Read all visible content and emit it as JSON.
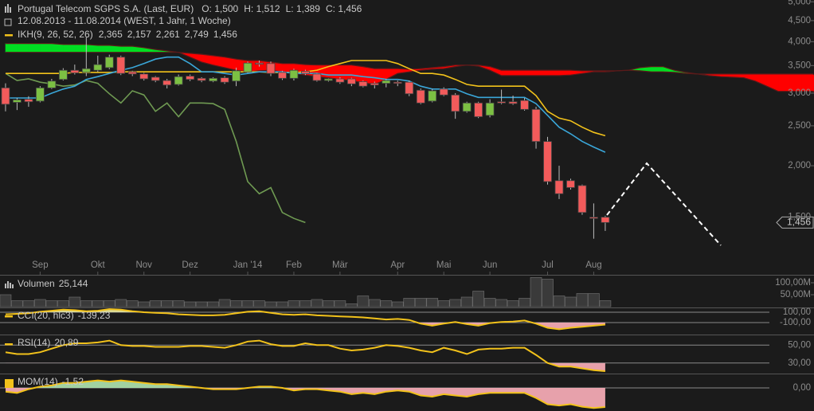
{
  "chart_data": [
    {
      "type": "candlestick",
      "title": "Portugal Telecom SGPS S.A. (Last, EUR)",
      "quote": [
        {
          "value": 1.5,
          "label": "O: 1,500"
        },
        {
          "value": 1.512,
          "label": "H: 1,512"
        },
        {
          "value": 1.389,
          "label": "L: 1,389"
        },
        {
          "value": 1.456,
          "label": "C: 1,456"
        }
      ],
      "subtitle": "12.08.2013 - 11.08.2014 (WEST, 1 Jahr, 1 Woche)",
      "open": [
        3.09,
        2.85,
        2.9,
        2.87,
        3.09,
        3.24,
        3.41,
        3.37,
        3.41,
        3.46,
        3.67,
        3.38,
        3.34,
        3.28,
        3.22,
        3.15,
        3.3,
        3.26,
        3.21,
        3.27,
        3.21,
        3.38,
        3.55,
        3.54,
        3.37,
        3.26,
        3.39,
        3.34,
        3.22,
        3.25,
        3.25,
        3.2,
        3.17,
        3.17,
        3.19,
        3.19,
        3.05,
        2.87,
        3.07,
        2.97,
        2.71,
        2.84,
        2.65,
        2.86,
        2.86,
        2.88,
        2.74,
        2.29,
        1.84,
        1.84,
        1.79,
        1.5,
        1.5
      ],
      "high": [
        3.17,
        2.92,
        2.95,
        3.12,
        3.25,
        3.45,
        3.52,
        4.1,
        3.7,
        3.72,
        3.7,
        3.4,
        3.36,
        3.3,
        3.25,
        3.33,
        3.33,
        3.28,
        3.28,
        3.3,
        3.46,
        3.58,
        3.6,
        3.58,
        3.4,
        3.44,
        3.42,
        3.36,
        3.26,
        3.28,
        3.27,
        3.22,
        3.2,
        3.25,
        3.22,
        3.22,
        3.08,
        3.07,
        3.1,
        3.0,
        2.86,
        2.86,
        2.9,
        3.06,
        2.96,
        2.92,
        2.78,
        2.35,
        2.0,
        1.86,
        1.8,
        1.62,
        1.512
      ],
      "low": [
        2.71,
        2.73,
        2.78,
        2.85,
        3.07,
        3.22,
        3.33,
        3.3,
        3.38,
        3.43,
        3.32,
        3.3,
        3.22,
        3.19,
        3.08,
        3.13,
        3.21,
        3.19,
        3.19,
        3.16,
        3.12,
        3.36,
        3.48,
        3.3,
        3.23,
        3.22,
        3.32,
        3.2,
        3.2,
        3.16,
        3.12,
        3.1,
        3.08,
        3.1,
        3.12,
        2.95,
        2.82,
        2.85,
        2.95,
        2.6,
        2.69,
        2.61,
        2.62,
        2.82,
        2.81,
        2.72,
        2.2,
        1.8,
        1.66,
        1.75,
        1.52,
        1.33,
        1.389
      ],
      "close": [
        2.82,
        2.89,
        2.86,
        3.09,
        3.21,
        3.41,
        3.36,
        3.44,
        3.52,
        3.67,
        3.35,
        3.34,
        3.25,
        3.22,
        3.14,
        3.29,
        3.24,
        3.22,
        3.26,
        3.19,
        3.4,
        3.55,
        3.53,
        3.35,
        3.26,
        3.41,
        3.35,
        3.22,
        3.25,
        3.19,
        3.16,
        3.12,
        3.14,
        3.22,
        3.17,
        2.99,
        2.84,
        3.04,
        2.97,
        2.71,
        2.84,
        2.63,
        2.84,
        2.84,
        2.83,
        2.74,
        2.29,
        1.83,
        1.71,
        1.77,
        1.54,
        1.49,
        1.456
      ],
      "up_color": "#7cc043",
      "down_color": "#f25b5b",
      "xlim": [
        -0.48,
        70.1
      ],
      "xticks": [
        {
          "value": -1.5,
          "label": "Aug"
        },
        {
          "value": 3,
          "label": "Sep"
        },
        {
          "value": 8,
          "label": "Okt"
        },
        {
          "value": 12,
          "label": "Nov"
        },
        {
          "value": 16,
          "label": "Dez"
        },
        {
          "value": 21,
          "label": "Jan '14"
        },
        {
          "value": 25,
          "label": "Feb"
        },
        {
          "value": 29,
          "label": "Mär"
        },
        {
          "value": 34,
          "label": "Apr"
        },
        {
          "value": 38,
          "label": "Mai"
        },
        {
          "value": 42,
          "label": "Jun"
        },
        {
          "value": 47,
          "label": "Jul"
        },
        {
          "value": 51,
          "label": "Aug"
        }
      ],
      "ylim": [
        1.087,
        5.05
      ],
      "yticks": [
        {
          "value": 1.5,
          "label": "1,500"
        },
        {
          "value": 2,
          "label": "2,000"
        },
        {
          "value": 2.5,
          "label": "2,500"
        },
        {
          "value": 3,
          "label": "3,000"
        },
        {
          "value": 3.5,
          "label": "3,500"
        },
        {
          "value": 4,
          "label": "4,000"
        },
        {
          "value": 4.5,
          "label": "4,500"
        },
        {
          "value": 5,
          "label": "5,000"
        }
      ],
      "log_scale": true,
      "last_price": {
        "value": 1.456,
        "label": "1,456"
      },
      "ichimoku": {
        "label": "IKH(9, 26, 52, 26)",
        "color": "#f2c21b",
        "cloud_colors": [
          "#00dd22",
          "#ff0000"
        ],
        "series": [
          {
            "color": "#f2c21b",
            "label": "2,365",
            "values": [
              3.35,
              3.35,
              3.35,
              3.35,
              3.35,
              3.35,
              3.37,
              3.37,
              3.37,
              3.37,
              3.38,
              3.38,
              3.38,
              3.38,
              3.38,
              3.38,
              3.38,
              3.38,
              3.38,
              3.38,
              3.38,
              3.38,
              3.38,
              3.37,
              3.37,
              3.37,
              3.38,
              3.41,
              3.48,
              3.54,
              3.6,
              3.6,
              3.6,
              3.6,
              3.54,
              3.44,
              3.35,
              3.35,
              3.32,
              3.24,
              3.15,
              3.12,
              3.12,
              3.12,
              3.12,
              3.12,
              2.96,
              2.71,
              2.61,
              2.57,
              2.48,
              2.41,
              2.365
            ]
          },
          {
            "color": "#3aa6d8",
            "label": "2,157",
            "values": [
              2.92,
              2.92,
              2.92,
              2.92,
              3.0,
              3.07,
              3.12,
              3.24,
              3.29,
              3.35,
              3.41,
              3.46,
              3.54,
              3.63,
              3.67,
              3.67,
              3.54,
              3.38,
              3.38,
              3.35,
              3.32,
              3.35,
              3.38,
              3.38,
              3.38,
              3.35,
              3.35,
              3.35,
              3.32,
              3.32,
              3.32,
              3.29,
              3.27,
              3.24,
              3.24,
              3.21,
              3.12,
              3.07,
              3.07,
              3.07,
              2.99,
              2.93,
              2.93,
              2.93,
              2.93,
              2.93,
              2.83,
              2.65,
              2.48,
              2.39,
              2.29,
              2.22,
              2.157
            ]
          },
          {
            "color": "#8d84c6",
            "label": "2,261",
            "values": [
              3.96,
              3.96,
              3.96,
              3.96,
              3.96,
              3.94,
              3.94,
              3.94,
              3.92,
              3.92,
              3.9,
              3.9,
              3.87,
              3.83,
              3.8,
              3.77,
              3.67,
              3.57,
              3.51,
              3.46,
              3.41,
              3.38,
              3.4,
              3.41,
              3.38,
              3.35,
              3.32,
              3.29,
              3.27,
              3.24,
              3.22,
              3.18,
              3.15,
              3.24,
              3.35,
              3.38,
              3.41,
              3.43,
              3.44,
              3.48,
              3.51,
              3.49,
              3.41,
              3.31,
              3.31,
              3.31,
              3.31,
              3.31,
              3.31,
              3.32,
              3.35,
              3.38,
              3.38,
              3.4,
              3.41,
              3.46,
              3.48,
              3.48,
              3.41,
              3.37,
              3.34,
              3.31,
              3.29,
              3.28,
              3.27,
              3.21,
              3.12,
              3.03,
              3.03,
              3.03,
              3.03,
              2.95,
              2.85,
              2.75,
              2.6,
              2.5,
              2.4,
              2.3,
              2.261
            ]
          },
          {
            "color": "#b25aa3",
            "label": "2,749",
            "values": [
              3.77,
              3.77,
              3.77,
              3.77,
              3.77,
              3.77,
              3.77,
              3.77,
              3.77,
              3.77,
              3.77,
              3.77,
              3.77,
              3.77,
              3.77,
              3.77,
              3.75,
              3.73,
              3.7,
              3.67,
              3.63,
              3.6,
              3.6,
              3.57,
              3.54,
              3.54,
              3.52,
              3.51,
              3.51,
              3.51,
              3.51,
              3.48,
              3.44,
              3.44,
              3.44,
              3.43,
              3.44,
              3.46,
              3.48,
              3.51,
              3.51,
              3.51,
              3.48,
              3.41,
              3.41,
              3.41,
              3.41,
              3.41,
              3.41,
              3.41,
              3.4,
              3.4,
              3.4,
              3.4,
              3.41,
              3.4,
              3.38,
              3.38,
              3.37,
              3.35,
              3.34,
              3.34,
              3.34,
              3.34,
              3.34,
              3.34,
              3.34,
              3.34,
              3.34,
              3.34,
              3.34,
              3.2,
              3.1,
              3.0,
              2.9,
              2.85,
              2.8,
              2.77,
              2.749
            ]
          },
          {
            "color": "#6f9a52",
            "label": "1,456",
            "values": [
              3.35,
              3.22,
              3.25,
              3.19,
              3.16,
              3.12,
              3.14,
              3.22,
              3.17,
              2.99,
              2.84,
              3.04,
              2.97,
              2.71,
              2.84,
              2.63,
              2.84,
              2.84,
              2.83,
              2.74,
              2.29,
              1.83,
              1.71,
              1.77,
              1.54,
              1.49,
              1.456
            ]
          }
        ]
      }
    },
    {
      "type": "bar",
      "series": [
        {
          "name": "Volumen",
          "color": "#3a3a3a",
          "last_label": "25,144",
          "values": [
            50,
            25,
            25,
            30,
            25,
            25,
            40,
            25,
            25,
            25,
            30,
            25,
            20,
            25,
            25,
            25,
            20,
            20,
            20,
            30,
            25,
            25,
            25,
            20,
            20,
            25,
            25,
            30,
            25,
            25,
            12,
            45,
            30,
            25,
            20,
            35,
            35,
            35,
            25,
            30,
            40,
            65,
            35,
            30,
            25,
            35,
            122,
            115,
            45,
            40,
            55,
            55,
            25.144
          ]
        }
      ],
      "ylim": [
        0,
        130
      ],
      "yticks": [
        {
          "value": 50,
          "label": "50,00M"
        },
        {
          "value": 100,
          "label": "100,00M"
        }
      ]
    },
    {
      "type": "line",
      "series": [
        {
          "name": "CCI(20, hlc3)",
          "color": "#f2c21b",
          "last_label": "-139,23",
          "values": [
            60,
            70,
            80,
            110,
            130,
            150,
            140,
            120,
            130,
            160,
            150,
            120,
            100,
            90,
            80,
            60,
            50,
            40,
            40,
            50,
            80,
            110,
            120,
            90,
            60,
            50,
            60,
            40,
            30,
            20,
            10,
            0,
            -20,
            -40,
            -30,
            -50,
            -120,
            -160,
            -120,
            -90,
            -130,
            -160,
            -110,
            -90,
            -80,
            -60,
            -120,
            -200,
            -230,
            -200,
            -180,
            -160,
            -139.23
          ]
        }
      ],
      "ylim": [
        -331,
        177
      ],
      "yticks": [
        {
          "value": -100,
          "label": "-100,00"
        },
        {
          "value": 100,
          "label": "100,00"
        }
      ],
      "fill_above": {
        "value": 100,
        "color": "#e6e49a"
      },
      "fill_below": {
        "value": -100,
        "color": "#f2a9b3"
      }
    },
    {
      "type": "line",
      "series": [
        {
          "name": "RSI(14)",
          "color": "#f2c21b",
          "last_label": "20,89",
          "values": [
            42,
            40,
            40,
            42,
            46,
            50,
            52,
            52,
            53,
            55,
            50,
            49,
            49,
            48,
            48,
            48,
            49,
            49,
            48,
            47,
            50,
            54,
            55,
            51,
            49,
            49,
            52,
            50,
            50,
            46,
            44,
            45,
            47,
            50,
            49,
            47,
            44,
            42,
            47,
            44,
            40,
            45,
            46,
            46,
            47,
            47,
            39,
            30,
            26,
            26,
            24,
            22,
            20.89
          ]
        }
      ],
      "ylim": [
        18.2,
        60.9
      ],
      "yticks": [
        {
          "value": 30,
          "label": "30,00"
        },
        {
          "value": 50,
          "label": "50,00"
        }
      ],
      "fill_below": {
        "value": 30,
        "color": "#f2a9b3"
      }
    },
    {
      "type": "line",
      "series": [
        {
          "name": "MOM(14)",
          "color": "#f2c21b",
          "last_label": "-1,52",
          "values": [
            -0.3,
            -0.4,
            -0.1,
            0.1,
            0.2,
            0.4,
            0.4,
            0.5,
            0.6,
            0.5,
            0.6,
            0.5,
            0.4,
            0.3,
            0.3,
            0.2,
            0.1,
            0,
            -0.1,
            -0.1,
            -0.1,
            0,
            0.1,
            0.1,
            0,
            -0.2,
            -0.1,
            -0.1,
            -0.2,
            -0.3,
            -0.5,
            -0.4,
            -0.5,
            -0.3,
            -0.2,
            -0.3,
            -0.6,
            -0.7,
            -0.5,
            -0.6,
            -0.7,
            -0.5,
            -0.4,
            -0.4,
            -0.4,
            -0.4,
            -0.8,
            -1.3,
            -1.4,
            -1.3,
            -1.5,
            -1.6,
            -1.52
          ]
        }
      ],
      "ylim": [
        -1.84,
        1.08
      ],
      "yticks": [
        {
          "value": 0,
          "label": "0,00"
        }
      ],
      "fill_above": {
        "value": 0,
        "color": "#a9dca9"
      },
      "fill_below": {
        "value": 0,
        "color": "#f2a9b3"
      }
    }
  ]
}
